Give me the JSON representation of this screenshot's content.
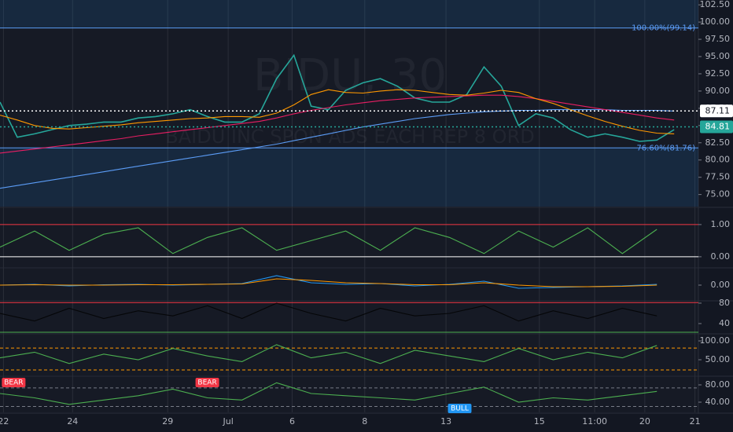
{
  "chart_data": [
    {
      "type": "line",
      "symbol": "BIDU, 30",
      "description": "BAIDU INC SPON ADS EACH REP 8 ORD",
      "xlim": [
        0,
        20.2
      ],
      "ylim": [
        73.25,
        103.2
      ],
      "yticks": [
        {
          "value": 75,
          "label": "75.00"
        },
        {
          "value": 77.5,
          "label": "77.50"
        },
        {
          "value": 80,
          "label": "80.00"
        },
        {
          "value": 82.5,
          "label": "82.50"
        },
        {
          "value": 85,
          "label": "85.00"
        },
        {
          "value": 87.5,
          "label": "87.50"
        },
        {
          "value": 90,
          "label": "90.00"
        },
        {
          "value": 92.5,
          "label": "92.50"
        },
        {
          "value": 95,
          "label": "95.00"
        },
        {
          "value": 97.5,
          "label": "97.50"
        },
        {
          "value": 100,
          "label": "100.00"
        },
        {
          "value": 102.5,
          "label": "102.50"
        }
      ],
      "fib_levels": [
        {
          "value": 99.14,
          "label": "100.00%(99.14)"
        },
        {
          "value": 81.76,
          "label": "76.60%(81.76)"
        }
      ],
      "price_lines": [
        {
          "value": 87.11,
          "color": "#ffffff"
        },
        {
          "value": 84.81,
          "color": "#26a69a"
        }
      ],
      "x": [
        0,
        0.5,
        1,
        1.5,
        2,
        2.5,
        3,
        3.5,
        4,
        4.5,
        5,
        5.5,
        6,
        6.5,
        7,
        7.5,
        8,
        8.5,
        9,
        9.5,
        10,
        10.5,
        11,
        11.5,
        12,
        12.5,
        13,
        13.5,
        14,
        14.5,
        15,
        15.5,
        16,
        16.5,
        17,
        17.5,
        18,
        18.5,
        19,
        19.5
      ],
      "series": [
        {
          "color": "#26a69a",
          "values": [
            88.4,
            83.3,
            83.8,
            84.4,
            85,
            85.2,
            85.5,
            85.5,
            86.1,
            86.3,
            86.7,
            87.3,
            86.3,
            85.5,
            85.5,
            86.7,
            91.8,
            95.2,
            87.8,
            87.3,
            90.1,
            91.2,
            91.8,
            90.7,
            89,
            88.4,
            88.4,
            89.5,
            93.5,
            90.7,
            85,
            86.7,
            86.1,
            84.4,
            83.3,
            83.8,
            83.3,
            82.7,
            82.9,
            84.4
          ]
        },
        {
          "color": "#5b9cf6",
          "values": [
            75.9,
            76.3,
            76.7,
            77.1,
            77.5,
            77.9,
            78.3,
            78.7,
            79.1,
            79.5,
            79.9,
            80.3,
            80.7,
            81.1,
            81.5,
            81.9,
            82.3,
            82.8,
            83.3,
            83.8,
            84.3,
            84.8,
            85.2,
            85.6,
            86,
            86.3,
            86.6,
            86.8,
            87,
            87.1,
            87.2,
            87.2,
            87.3,
            87.3,
            87.3,
            87.3,
            87.2,
            87.2,
            87.2,
            87.1
          ]
        },
        {
          "color": "#e91e63",
          "values": [
            81,
            81.3,
            81.6,
            81.9,
            82.2,
            82.5,
            82.8,
            83.1,
            83.5,
            83.8,
            84.1,
            84.4,
            84.7,
            85,
            85.3,
            85.6,
            86.1,
            86.7,
            87.2,
            87.6,
            88,
            88.3,
            88.6,
            88.8,
            89,
            89.1,
            89.2,
            89.3,
            89.4,
            89.4,
            89.2,
            88.9,
            88.5,
            88.1,
            87.7,
            87.3,
            86.9,
            86.5,
            86.1,
            85.8
          ]
        },
        {
          "color": "#ff9800",
          "values": [
            86.5,
            85.8,
            85,
            84.6,
            84.5,
            84.7,
            84.9,
            85.1,
            85.4,
            85.6,
            85.8,
            86,
            86.1,
            86.3,
            86.3,
            86.2,
            86.8,
            88,
            89.5,
            90.2,
            89.8,
            89.7,
            90,
            90.2,
            90.1,
            89.8,
            89.5,
            89.4,
            89.7,
            90.1,
            89.8,
            88.9,
            88.2,
            87.3,
            86.4,
            85.6,
            84.9,
            84.3,
            83.9,
            83.8
          ]
        }
      ]
    },
    {
      "type": "line",
      "xlim": [
        0,
        20.2
      ],
      "ylim": [
        -0.32,
        1.51
      ],
      "yticks": [
        {
          "value": 1,
          "label": "1.00"
        },
        {
          "value": 0,
          "label": "0.00"
        }
      ],
      "hlines": [
        {
          "value": 1,
          "color": "#f23645"
        },
        {
          "value": 0,
          "color": "#ffffff"
        }
      ],
      "x": [
        0,
        1,
        2,
        3,
        4,
        5,
        6,
        7,
        8,
        9,
        10,
        11,
        12,
        13,
        14,
        15,
        16,
        17,
        18,
        19
      ],
      "series": [
        {
          "color": "#4caf50",
          "values": [
            0.3,
            0.8,
            0.2,
            0.7,
            0.9,
            0.1,
            0.6,
            0.9,
            0.2,
            0.5,
            0.8,
            0.2,
            0.9,
            0.6,
            0.1,
            0.8,
            0.3,
            0.9,
            0.1,
            0.85
          ]
        }
      ]
    },
    {
      "type": "line",
      "xlim": [
        0,
        20.2
      ],
      "ylim": [
        -1.9,
        2.1
      ],
      "yticks": [
        {
          "value": 0,
          "label": "0.00"
        }
      ],
      "x": [
        0,
        1,
        2,
        3,
        4,
        5,
        6,
        7,
        8,
        9,
        10,
        11,
        12,
        13,
        14,
        15,
        16,
        17,
        18,
        19
      ],
      "series": [
        {
          "color": "#2196f3",
          "values": [
            0,
            0.1,
            -0.1,
            0.05,
            0.1,
            0,
            0.1,
            0.2,
            1.2,
            0.3,
            0.1,
            0.2,
            -0.1,
            0.1,
            0.5,
            -0.4,
            -0.3,
            -0.2,
            -0.1,
            0.1
          ]
        },
        {
          "color": "#ff9800",
          "values": [
            0,
            0.05,
            0,
            0,
            0.05,
            0.05,
            0.1,
            0.15,
            0.8,
            0.6,
            0.3,
            0.2,
            0.05,
            0.05,
            0.3,
            0,
            -0.2,
            -0.2,
            -0.15,
            0
          ]
        }
      ]
    },
    {
      "type": "line",
      "xlim": [
        0,
        20.2
      ],
      "ylim": [
        21.5,
        83
      ],
      "yticks": [
        80,
        40
      ],
      "hlines": [
        {
          "value": 81,
          "color": "#f23645"
        },
        {
          "value": 23,
          "color": "#4caf50"
        }
      ],
      "x": [
        0,
        1,
        2,
        3,
        4,
        5,
        6,
        7,
        8,
        9,
        10,
        11,
        12,
        13,
        14,
        15,
        16,
        17,
        18,
        19
      ],
      "series": [
        {
          "color": "#050608",
          "values": [
            60,
            45,
            70,
            50,
            65,
            55,
            75,
            50,
            80,
            60,
            45,
            70,
            55,
            60,
            75,
            45,
            65,
            50,
            70,
            55
          ]
        }
      ]
    },
    {
      "type": "line",
      "xlim": [
        0,
        20.2
      ],
      "ylim": [
        8.3,
        116.7
      ],
      "yticks": [
        {
          "value": 100,
          "label": "100.00"
        },
        {
          "value": 50,
          "label": "50.00"
        }
      ],
      "hlines": [
        {
          "value": 81,
          "color": "#ff9800",
          "dashed": true
        },
        {
          "value": 23,
          "color": "#ff9800",
          "dashed": true
        }
      ],
      "x": [
        0,
        1,
        2,
        3,
        4,
        5,
        6,
        7,
        8,
        9,
        10,
        11,
        12,
        13,
        14,
        15,
        16,
        17,
        18,
        19
      ],
      "series": [
        {
          "color": "#4caf50",
          "values": [
            55,
            70,
            40,
            65,
            50,
            80,
            60,
            45,
            90,
            55,
            70,
            40,
            75,
            60,
            45,
            80,
            50,
            70,
            55,
            88
          ]
        }
      ]
    },
    {
      "type": "line",
      "xlim": [
        0,
        20.2
      ],
      "ylim": [
        16.4,
        98.2
      ],
      "yticks": [
        {
          "value": 80,
          "label": "80.00"
        },
        {
          "value": 40,
          "label": "40.00"
        }
      ],
      "hlines": [
        {
          "value": 73,
          "color": "#787b86",
          "dashed": true
        },
        {
          "value": 30,
          "color": "#787b86",
          "dashed": true
        }
      ],
      "annotations": [
        {
          "text": "BEAR",
          "x": 0.1,
          "y": 91,
          "color": "#f23645"
        },
        {
          "text": "BEAR",
          "x": 5.7,
          "y": 93,
          "color": "#f23645"
        },
        {
          "text": "BULL",
          "x": 13,
          "y": 20,
          "color": "#2196f3"
        }
      ],
      "x": [
        0,
        1,
        2,
        3,
        4,
        5,
        6,
        7,
        8,
        9,
        10,
        11,
        12,
        13,
        14,
        15,
        16,
        17,
        18,
        19
      ],
      "series": [
        {
          "color": "#4caf50",
          "values": [
            60,
            50,
            35,
            45,
            55,
            70,
            50,
            45,
            85,
            60,
            55,
            50,
            45,
            60,
            75,
            40,
            50,
            45,
            55,
            65
          ]
        }
      ],
      "xticks": [
        {
          "value": 0.1,
          "label": "22"
        },
        {
          "value": 2.1,
          "label": "24"
        },
        {
          "value": 4.85,
          "label": "29"
        },
        {
          "value": 6.6,
          "label": "Jul"
        },
        {
          "value": 8.45,
          "label": "6"
        },
        {
          "value": 10.55,
          "label": "8"
        },
        {
          "value": 12.9,
          "label": "13"
        },
        {
          "value": 15.6,
          "label": "15"
        },
        {
          "value": 17.2,
          "label": "11:00"
        },
        {
          "value": 18.65,
          "label": "20"
        },
        {
          "value": 20.1,
          "label": "21"
        }
      ]
    }
  ]
}
